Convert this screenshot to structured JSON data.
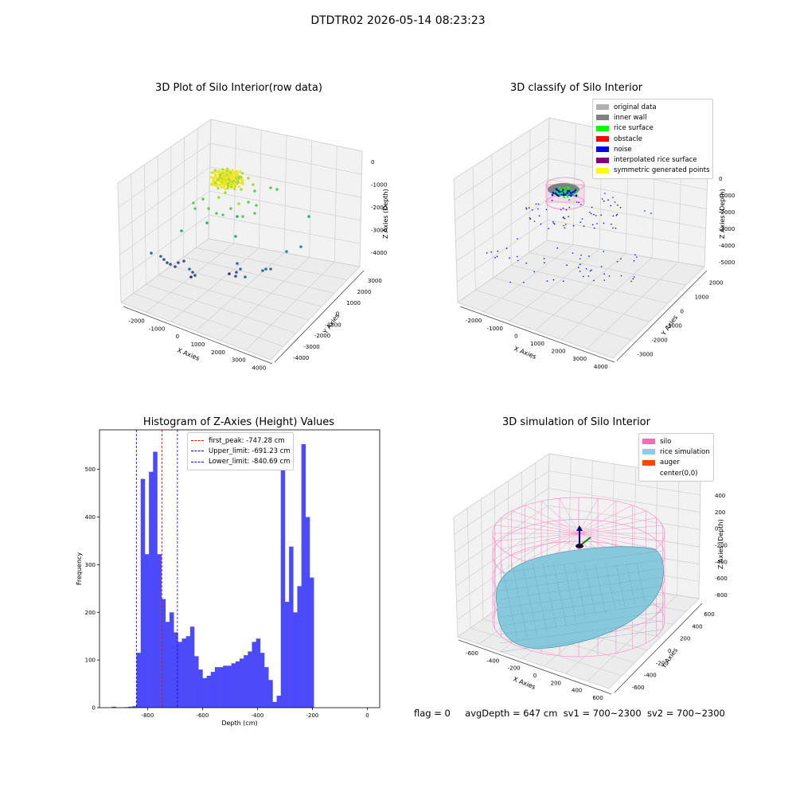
{
  "suptitle": "DTDTR02 2026-05-14 08:23:23",
  "footer": {
    "flag": "flag = 0",
    "avg": "avgDepth = 647 cm",
    "sv1": "sv1 = 700~2300",
    "sv2": "sv2 = 700~2300"
  },
  "chart_data": [
    {
      "type": "scatter",
      "title": "3D Plot of Silo Interior(row data)",
      "xlabel": "X Axies",
      "ylabel": "Y Axies",
      "zlabel": "Z Axies (Depth)",
      "x_ticks": [
        "-2000",
        "-1000",
        "0",
        "1000",
        "2000",
        "3000",
        "4000"
      ],
      "y_ticks": [
        "-4000",
        "-3000",
        "-2000",
        "-1000",
        "0",
        "1000",
        "2000",
        "3000"
      ],
      "z_ticks": [
        "-4000",
        "-3000",
        "-2000",
        "-1000",
        "0"
      ],
      "xlim": [
        -2300,
        4000
      ],
      "ylim": [
        -4000,
        3000
      ],
      "zlim": [
        -4600,
        300
      ],
      "colors": [
        "#f0e526",
        "#a8db34",
        "#5ec962",
        "#29af7f",
        "#21918c",
        "#2c728e",
        "#3b528b",
        "#472d7b"
      ]
    },
    {
      "type": "scatter",
      "title": "3D classify of Silo Interior",
      "xlabel": "X Axies",
      "ylabel": "Y Axies",
      "zlabel": "Z Axies (Depth)",
      "x_ticks": [
        "-2000",
        "-1000",
        "0",
        "1000",
        "2000",
        "3000",
        "4000"
      ],
      "y_ticks": [
        "-3000",
        "-2000",
        "-1000",
        "0",
        "1000",
        "2000"
      ],
      "z_ticks": [
        "-5000",
        "-4000",
        "-3000",
        "-2000",
        "-1000",
        "0"
      ],
      "legend": [
        {
          "label": "original data",
          "color": "#b0b0b0"
        },
        {
          "label": "inner wall",
          "color": "#808080"
        },
        {
          "label": "rice surface",
          "color": "#00ff00"
        },
        {
          "label": "obstacle",
          "color": "#ff0000"
        },
        {
          "label": "noise",
          "color": "#0000ff"
        },
        {
          "label": "interpolated rice surface",
          "color": "#800080"
        },
        {
          "label": "symmetric generated points",
          "color": "#ffff00"
        }
      ],
      "legend_position": "upper-right"
    },
    {
      "type": "bar",
      "title": "Histogram of Z-Axies (Height) Values",
      "xlabel": "Depth (cm)",
      "ylabel": "Frequency",
      "xlim": [
        -975,
        45
      ],
      "ylim": [
        0,
        583
      ],
      "x_ticks": [
        -800,
        -600,
        -400,
        -200,
        0
      ],
      "y_ticks": [
        0,
        100,
        200,
        300,
        400,
        500
      ],
      "bin_start": -930,
      "bin_width": 15,
      "bar_color": "#4b4bfa",
      "values": [
        2,
        0,
        0,
        1,
        2,
        3,
        115,
        480,
        322,
        495,
        537,
        322,
        228,
        180,
        200,
        158,
        138,
        145,
        150,
        170,
        108,
        80,
        62,
        67,
        75,
        85,
        85,
        88,
        88,
        93,
        97,
        103,
        110,
        118,
        138,
        145,
        115,
        85,
        58,
        12,
        25,
        500,
        222,
        338,
        200,
        255,
        553,
        400,
        273
      ],
      "lines": [
        {
          "label": "first_peak: -747.28 cm",
          "value": -747.28,
          "color": "#ff0000"
        },
        {
          "label": "Upper_limit: -691.23 cm",
          "value": -691.23,
          "color": "#0000cc"
        },
        {
          "label": "Lower_limit: -840.69 cm",
          "value": -840.69,
          "color": "#0000cc"
        }
      ],
      "legend_position": "upper-center"
    },
    {
      "type": "surface",
      "title": "3D simulation of Silo Interior",
      "xlabel": "X Axies",
      "ylabel": "Y Axies",
      "zlabel": "Z Axies (Depth)",
      "x_ticks": [
        "-600",
        "-400",
        "-200",
        "0",
        "200",
        "400",
        "600"
      ],
      "y_ticks": [
        "-600",
        "-400",
        "-200",
        "0",
        "200",
        "400",
        "600"
      ],
      "z_ticks": [
        "-800",
        "-600",
        "-400",
        "-200",
        "0",
        "200",
        "400"
      ],
      "legend": [
        {
          "label": "silo",
          "color": "#ff69b4"
        },
        {
          "label": "rice simulation",
          "color": "#87ceeb"
        },
        {
          "label": "auger",
          "color": "#ff4500"
        },
        {
          "label": "center(0,0)",
          "color": ""
        }
      ],
      "legend_position": "upper-right"
    }
  ]
}
